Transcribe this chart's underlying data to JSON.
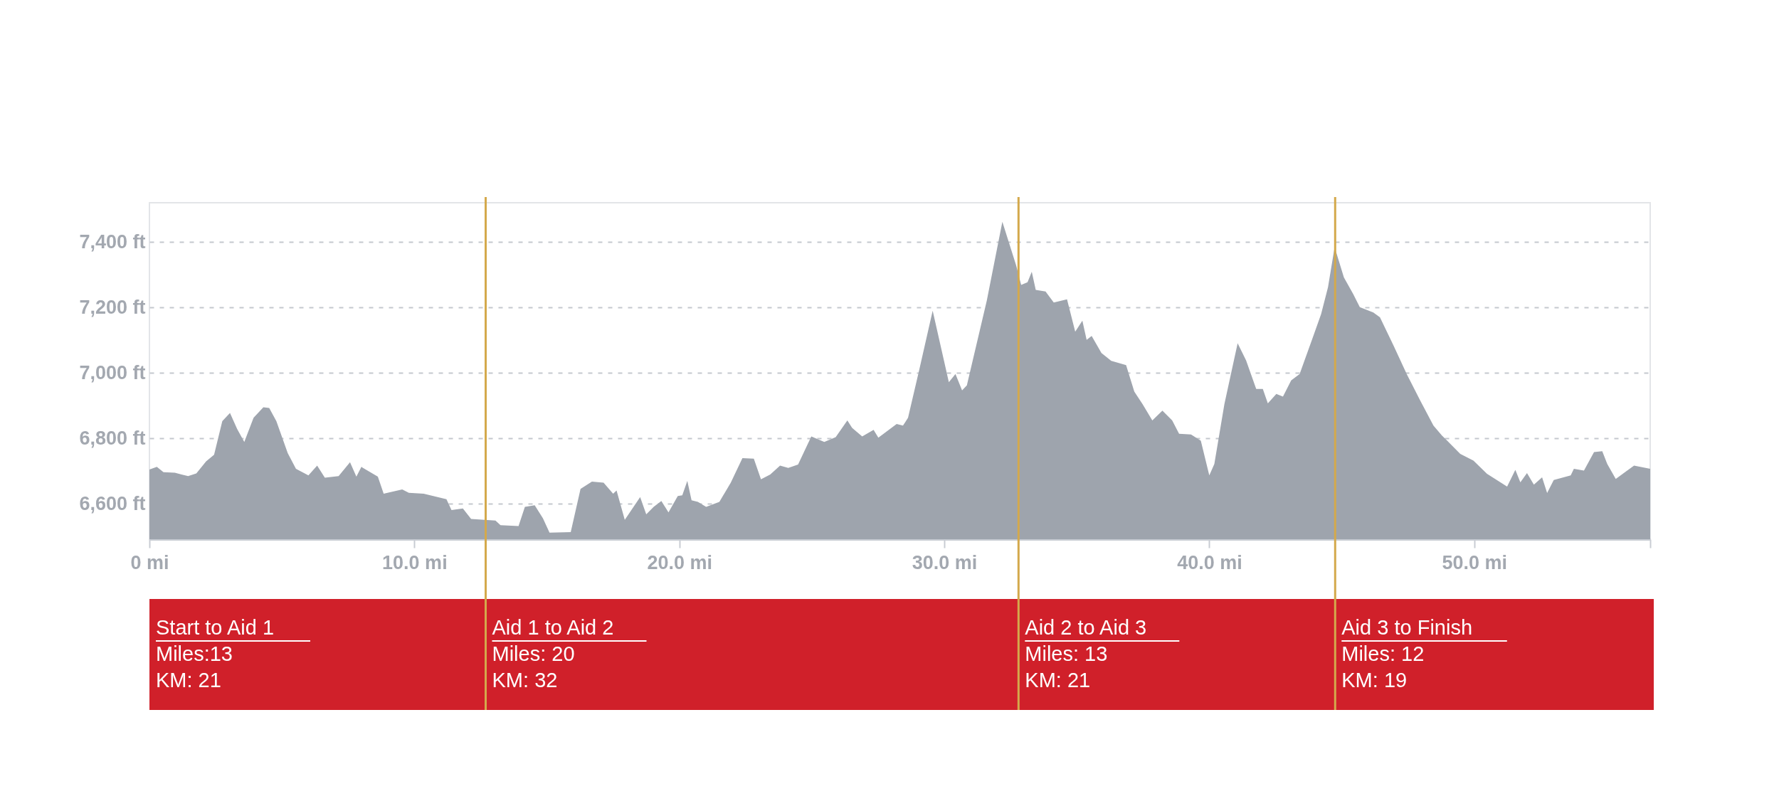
{
  "chart_data": {
    "type": "area",
    "grid": "y",
    "legend": false,
    "marker": "none",
    "xlim": [
      0,
      56.64
    ],
    "ylim": [
      6492,
      7520
    ],
    "xticks": [
      {
        "value": 0,
        "label": "0 mi"
      },
      {
        "value": 10,
        "label": "10.0 mi"
      },
      {
        "value": 20,
        "label": "20.0 mi"
      },
      {
        "value": 30,
        "label": "30.0 mi"
      },
      {
        "value": 40,
        "label": "40.0 mi"
      },
      {
        "value": 50,
        "label": "50.0 mi"
      },
      {
        "value": 56.64,
        "label": null
      }
    ],
    "yticks": [
      {
        "value": 6600,
        "label": "6,600 ft"
      },
      {
        "value": 6800,
        "label": "6,800 ft"
      },
      {
        "value": 7000,
        "label": "7,000 ft"
      },
      {
        "value": 7200,
        "label": "7,200 ft"
      },
      {
        "value": 7400,
        "label": "7,400 ft"
      }
    ],
    "ref_lines": [
      {
        "axis": "x",
        "value": 12.69,
        "color": "#d4a94c"
      },
      {
        "axis": "x",
        "value": 32.8,
        "color": "#d4a94c"
      },
      {
        "axis": "x",
        "value": 44.75,
        "color": "#d4a94c"
      }
    ],
    "annotations": [
      "Start to Aid 1\nMiles:13\nKM: 21",
      "Aid 1 to Aid 2\nMiles: 20\nKM: 32",
      "Aid 2 to Aid 3\nMiles: 13\nKM: 21",
      "Aid 3 to Finish\nMiles: 12\nKM: 19"
    ],
    "series": [
      {
        "color": "#9ea4ad",
        "x": [
          0,
          0.28,
          0.53,
          0.96,
          1.46,
          1.77,
          2.14,
          2.44,
          2.75,
          3.04,
          3.31,
          3.58,
          3.93,
          4.3,
          4.52,
          4.79,
          5.22,
          5.53,
          6.0,
          6.33,
          6.62,
          7.14,
          7.57,
          7.81,
          8.0,
          8.62,
          8.84,
          9.54,
          9.79,
          10.35,
          11.21,
          11.4,
          11.83,
          12.14,
          13.06,
          13.25,
          13.93,
          14.17,
          14.54,
          14.85,
          15.1,
          15.9,
          16.27,
          16.7,
          17.14,
          17.5,
          17.63,
          17.94,
          18.52,
          18.75,
          19.03,
          19.32,
          19.59,
          19.94,
          20.11,
          20.3,
          20.46,
          20.7,
          21.01,
          21.51,
          21.94,
          22.38,
          22.81,
          23.08,
          23.43,
          23.8,
          24.11,
          24.48,
          24.98,
          25.47,
          25.9,
          26.34,
          26.52,
          26.9,
          27.33,
          27.51,
          28.2,
          28.44,
          28.63,
          29.06,
          29.56,
          30.17,
          30.42,
          30.67,
          30.85,
          31.6,
          32.19,
          32.71,
          32.9,
          33.14,
          33.3,
          33.45,
          33.82,
          34.13,
          34.63,
          34.94,
          35.21,
          35.37,
          35.56,
          35.93,
          36.3,
          36.86,
          37.17,
          37.48,
          37.85,
          38.23,
          38.6,
          38.86,
          39.31,
          39.68,
          40.0,
          40.19,
          40.57,
          41.07,
          41.39,
          41.77,
          42.02,
          42.21,
          42.53,
          42.78,
          43.09,
          43.41,
          43.91,
          44.22,
          44.48,
          44.73,
          45.08,
          45.43,
          45.68,
          46.19,
          46.44,
          46.95,
          47.45,
          47.96,
          48.46,
          48.78,
          49.47,
          49.97,
          50.48,
          51.24,
          51.55,
          51.74,
          51.99,
          52.25,
          52.56,
          52.75,
          53.0,
          53.64,
          53.76,
          54.14,
          54.52,
          54.83,
          55.02,
          55.34,
          56.03,
          56.64
        ],
        "values": [
          6705,
          6713,
          6697,
          6695,
          6685,
          6693,
          6730,
          6750,
          6853,
          6878,
          6829,
          6789,
          6863,
          6895,
          6893,
          6853,
          6755,
          6707,
          6687,
          6717,
          6680,
          6685,
          6727,
          6683,
          6713,
          6683,
          6631,
          6644,
          6634,
          6631,
          6614,
          6581,
          6586,
          6554,
          6549,
          6535,
          6532,
          6591,
          6596,
          6556,
          6512,
          6514,
          6646,
          6668,
          6665,
          6631,
          6641,
          6551,
          6621,
          6568,
          6591,
          6609,
          6574,
          6624,
          6626,
          6670,
          6611,
          6606,
          6591,
          6606,
          6665,
          6740,
          6738,
          6675,
          6690,
          6717,
          6710,
          6720,
          6806,
          6789,
          6804,
          6855,
          6832,
          6806,
          6826,
          6802,
          6844,
          6839,
          6863,
          7012,
          7190,
          6972,
          6997,
          6947,
          6962,
          7220,
          7462,
          7329,
          7269,
          7277,
          7309,
          7254,
          7249,
          7215,
          7225,
          7126,
          7160,
          7101,
          7113,
          7061,
          7037,
          7024,
          6943,
          6905,
          6855,
          6885,
          6855,
          6814,
          6812,
          6793,
          6687,
          6722,
          6905,
          7091,
          7038,
          6951,
          6951,
          6907,
          6936,
          6928,
          6977,
          6997,
          7109,
          7180,
          7262,
          7384,
          7292,
          7241,
          7201,
          7185,
          7170,
          7084,
          6997,
          6916,
          6839,
          6809,
          6753,
          6732,
          6692,
          6653,
          6704,
          6666,
          6694,
          6659,
          6681,
          6633,
          6673,
          6687,
          6707,
          6702,
          6758,
          6761,
          6722,
          6676,
          6717,
          6707
        ]
      }
    ]
  }
}
